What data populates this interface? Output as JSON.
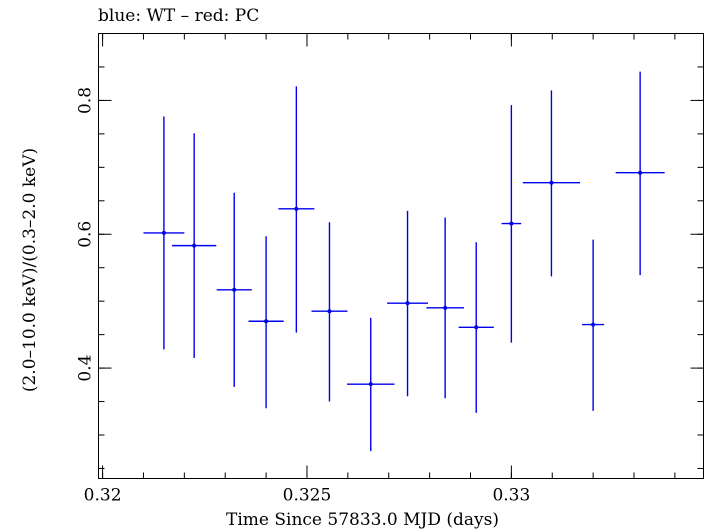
{
  "chart_data": {
    "type": "scatter",
    "title": "blue: WT – red: PC",
    "xlabel": "Time Since 57833.0 MJD (days)",
    "ylabel": "(2.0–10.0 keV)/(0.3–2.0 keV)",
    "xlim": [
      0.3199,
      0.3347
    ],
    "ylim": [
      0.235,
      0.9
    ],
    "xticks": [
      {
        "value": 0.32,
        "label": "0.32"
      },
      {
        "value": 0.325,
        "label": "0.325"
      },
      {
        "value": 0.33,
        "label": "0.33"
      }
    ],
    "yticks": [
      {
        "value": 0.4,
        "label": "0.4"
      },
      {
        "value": 0.6,
        "label": "0.6"
      },
      {
        "value": 0.8,
        "label": "0.8"
      }
    ],
    "grid": false,
    "series": [
      {
        "name": "WT",
        "color": "#0000ee",
        "points": [
          {
            "x": 0.3215,
            "xerr": 0.0005,
            "y": 0.602,
            "ylo": 0.428,
            "yhi": 0.776
          },
          {
            "x": 0.32224,
            "xerr": 0.00054,
            "y": 0.583,
            "ylo": 0.415,
            "yhi": 0.751
          },
          {
            "x": 0.32322,
            "xerr": 0.00043,
            "y": 0.517,
            "ylo": 0.372,
            "yhi": 0.662
          },
          {
            "x": 0.324,
            "xerr": 0.00043,
            "y": 0.47,
            "ylo": 0.34,
            "yhi": 0.597
          },
          {
            "x": 0.32474,
            "xerr": 0.00044,
            "y": 0.638,
            "ylo": 0.453,
            "yhi": 0.821
          },
          {
            "x": 0.32555,
            "xerr": 0.00044,
            "y": 0.485,
            "ylo": 0.35,
            "yhi": 0.618
          },
          {
            "x": 0.32656,
            "xerr": 0.00058,
            "y": 0.376,
            "ylo": 0.276,
            "yhi": 0.475
          },
          {
            "x": 0.32746,
            "xerr": 0.0005,
            "y": 0.497,
            "ylo": 0.358,
            "yhi": 0.635
          },
          {
            "x": 0.32838,
            "xerr": 0.00046,
            "y": 0.49,
            "ylo": 0.355,
            "yhi": 0.625
          },
          {
            "x": 0.32914,
            "xerr": 0.00043,
            "y": 0.461,
            "ylo": 0.333,
            "yhi": 0.588
          },
          {
            "x": 0.33,
            "xerr": 0.00024,
            "y": 0.616,
            "ylo": 0.438,
            "yhi": 0.793
          },
          {
            "x": 0.33098,
            "xerr": 0.0007,
            "y": 0.677,
            "ylo": 0.537,
            "yhi": 0.815
          },
          {
            "x": 0.332,
            "xerr": 0.00027,
            "y": 0.465,
            "ylo": 0.336,
            "yhi": 0.592
          },
          {
            "x": 0.33315,
            "xerr": 0.0006,
            "y": 0.692,
            "ylo": 0.539,
            "yhi": 0.843
          }
        ]
      }
    ]
  }
}
